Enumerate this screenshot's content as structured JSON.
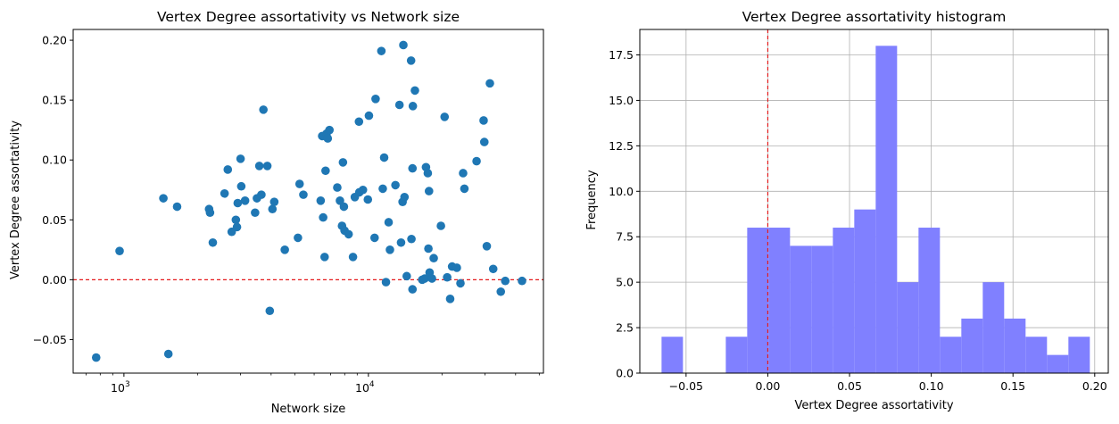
{
  "chart_data": [
    {
      "type": "scatter",
      "title": "Vertex Degree assortativity vs Network size",
      "xlabel": "Network size",
      "ylabel": "Vertex Degree assortativity",
      "xscale": "log",
      "xlim": [
        620,
        52000
      ],
      "ylim": [
        -0.078,
        0.209
      ],
      "xticks": [
        {
          "value": 1000,
          "base": "10",
          "exp": "3"
        },
        {
          "value": 10000,
          "base": "10",
          "exp": "4"
        }
      ],
      "yticks": [
        {
          "value": -0.05,
          "label": "−0.05"
        },
        {
          "value": 0.0,
          "label": "0.00"
        },
        {
          "value": 0.05,
          "label": "0.05"
        },
        {
          "value": 0.1,
          "label": "0.10"
        },
        {
          "value": 0.15,
          "label": "0.15"
        },
        {
          "value": 0.2,
          "label": "0.20"
        }
      ],
      "reference_line": {
        "y": 0.0,
        "color": "#e41a1c",
        "style": "dashed"
      },
      "point_color": "#1f77b4",
      "grid": false,
      "points": [
        [
          770,
          -0.065
        ],
        [
          960,
          0.024
        ],
        [
          1450,
          0.068
        ],
        [
          1520,
          -0.062
        ],
        [
          1650,
          0.061
        ],
        [
          2230,
          0.059
        ],
        [
          2250,
          0.056
        ],
        [
          2310,
          0.031
        ],
        [
          2580,
          0.072
        ],
        [
          2660,
          0.092
        ],
        [
          2760,
          0.04
        ],
        [
          2870,
          0.05
        ],
        [
          2900,
          0.044
        ],
        [
          2920,
          0.064
        ],
        [
          3000,
          0.101
        ],
        [
          3020,
          0.078
        ],
        [
          3130,
          0.066
        ],
        [
          3440,
          0.056
        ],
        [
          3500,
          0.068
        ],
        [
          3580,
          0.095
        ],
        [
          3650,
          0.071
        ],
        [
          3720,
          0.142
        ],
        [
          3860,
          0.095
        ],
        [
          3950,
          -0.026
        ],
        [
          4050,
          0.059
        ],
        [
          4120,
          0.065
        ],
        [
          4550,
          0.025
        ],
        [
          5150,
          0.035
        ],
        [
          5230,
          0.08
        ],
        [
          5420,
          0.071
        ],
        [
          6380,
          0.066
        ],
        [
          6470,
          0.12
        ],
        [
          6530,
          0.052
        ],
        [
          6620,
          0.019
        ],
        [
          6680,
          0.091
        ],
        [
          6740,
          0.122
        ],
        [
          6820,
          0.118
        ],
        [
          6930,
          0.125
        ],
        [
          7460,
          0.077
        ],
        [
          7650,
          0.066
        ],
        [
          7800,
          0.045
        ],
        [
          7870,
          0.098
        ],
        [
          7940,
          0.061
        ],
        [
          7990,
          0.041
        ],
        [
          8300,
          0.038
        ],
        [
          8650,
          0.019
        ],
        [
          8800,
          0.069
        ],
        [
          9150,
          0.132
        ],
        [
          9180,
          0.073
        ],
        [
          9500,
          0.075
        ],
        [
          9950,
          0.067
        ],
        [
          10050,
          0.137
        ],
        [
          10600,
          0.035
        ],
        [
          10700,
          0.151
        ],
        [
          11300,
          0.191
        ],
        [
          11450,
          0.076
        ],
        [
          11600,
          0.102
        ],
        [
          11800,
          -0.002
        ],
        [
          12100,
          0.048
        ],
        [
          12250,
          0.025
        ],
        [
          12900,
          0.079
        ],
        [
          13400,
          0.146
        ],
        [
          13600,
          0.031
        ],
        [
          13800,
          0.065
        ],
        [
          13900,
          0.196
        ],
        [
          14050,
          0.069
        ],
        [
          14350,
          0.003
        ],
        [
          14950,
          0.183
        ],
        [
          15000,
          0.034
        ],
        [
          15150,
          0.093
        ],
        [
          15150,
          -0.008
        ],
        [
          15200,
          0.145
        ],
        [
          15500,
          0.158
        ],
        [
          16600,
          0.0
        ],
        [
          17000,
          0.001
        ],
        [
          17200,
          0.094
        ],
        [
          17500,
          0.089
        ],
        [
          17600,
          0.026
        ],
        [
          17700,
          0.074
        ],
        [
          17800,
          0.006
        ],
        [
          18200,
          0.001
        ],
        [
          18500,
          0.018
        ],
        [
          19800,
          0.045
        ],
        [
          20500,
          0.136
        ],
        [
          21000,
          0.002
        ],
        [
          21600,
          -0.016
        ],
        [
          22000,
          0.011
        ],
        [
          23000,
          0.01
        ],
        [
          23800,
          -0.003
        ],
        [
          24400,
          0.089
        ],
        [
          24700,
          0.076
        ],
        [
          27700,
          0.099
        ],
        [
          29600,
          0.133
        ],
        [
          29800,
          0.115
        ],
        [
          30500,
          0.028
        ],
        [
          31400,
          0.164
        ],
        [
          32400,
          0.009
        ],
        [
          34800,
          -0.01
        ],
        [
          36300,
          -0.001
        ],
        [
          42500,
          -0.001
        ]
      ]
    },
    {
      "type": "bar",
      "title": "Vertex Degree assortativity histogram",
      "xlabel": "Vertex Degree assortativity",
      "ylabel": "Frequency",
      "xlim": [
        -0.0783,
        0.2083
      ],
      "ylim": [
        0,
        18.9
      ],
      "bin_start": -0.065,
      "bin_width": 0.0131,
      "counts": [
        2,
        0,
        0,
        2,
        8,
        8,
        7,
        7,
        8,
        9,
        18,
        5,
        8,
        2,
        3,
        5,
        3,
        2,
        1,
        2
      ],
      "xticks": [
        {
          "value": -0.05,
          "label": "−0.05"
        },
        {
          "value": 0.0,
          "label": "0.00"
        },
        {
          "value": 0.05,
          "label": "0.05"
        },
        {
          "value": 0.1,
          "label": "0.10"
        },
        {
          "value": 0.15,
          "label": "0.15"
        },
        {
          "value": 0.2,
          "label": "0.20"
        }
      ],
      "yticks": [
        {
          "value": 0,
          "label": "0.0"
        },
        {
          "value": 2.5,
          "label": "2.5"
        },
        {
          "value": 5,
          "label": "5.0"
        },
        {
          "value": 7.5,
          "label": "7.5"
        },
        {
          "value": 10,
          "label": "10.0"
        },
        {
          "value": 12.5,
          "label": "12.5"
        },
        {
          "value": 15,
          "label": "15.0"
        },
        {
          "value": 17.5,
          "label": "17.5"
        }
      ],
      "reference_line": {
        "x": 0.0,
        "color": "#e41a1c",
        "style": "dashed"
      },
      "bar_color": "#8080ff",
      "grid": true
    }
  ]
}
